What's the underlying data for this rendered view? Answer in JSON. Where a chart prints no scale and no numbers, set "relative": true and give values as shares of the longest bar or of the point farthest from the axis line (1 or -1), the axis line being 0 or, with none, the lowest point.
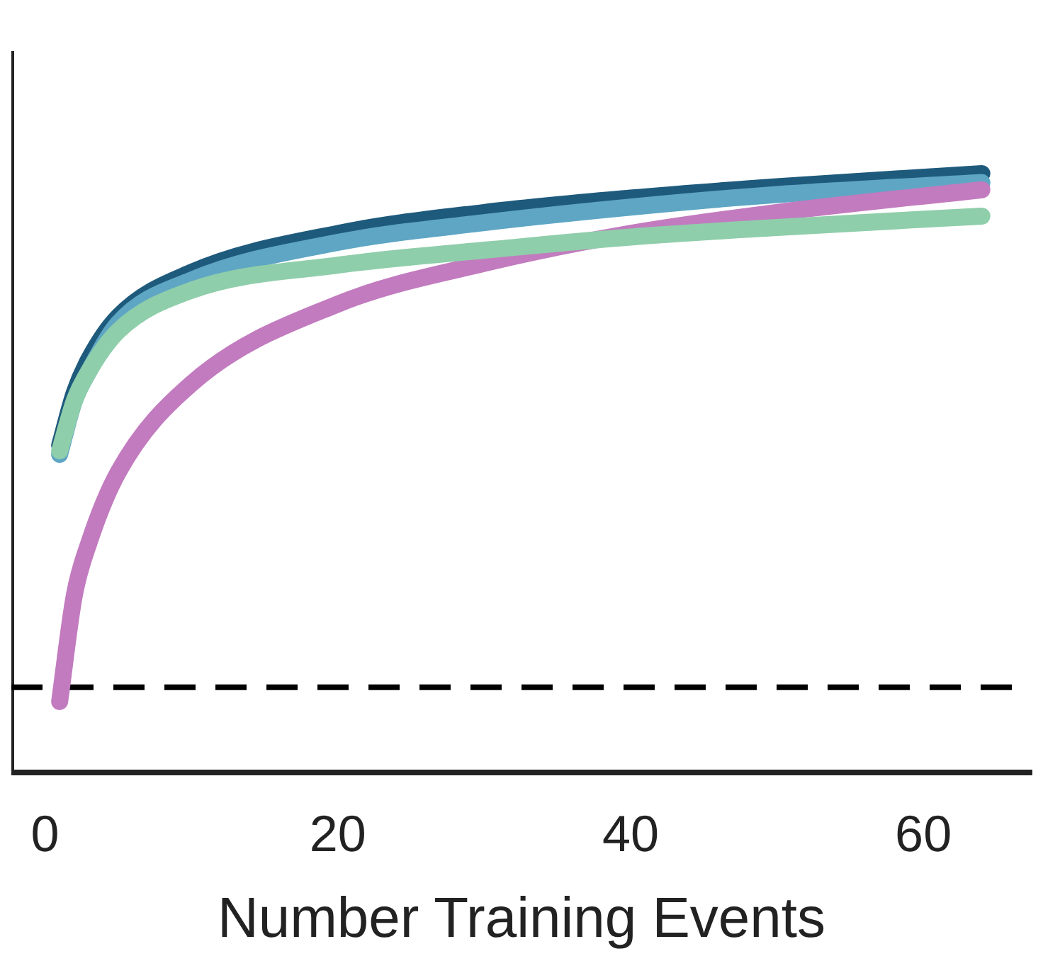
{
  "chart_data": {
    "type": "line",
    "relative": true,
    "xlabel": "Number Training Events",
    "xlim": [
      -2.3,
      67.4
    ],
    "xticks": [
      0,
      20,
      40,
      60
    ],
    "grid": false,
    "legend": false,
    "marker": "none",
    "line_style": "solid",
    "ref_lines": [
      {
        "axis": "y",
        "value": 0.142,
        "color": "#000000",
        "line_style": "dashed"
      }
    ],
    "series": [
      {
        "color": "#8fceaa",
        "x": [
          1,
          2,
          3,
          5,
          10,
          20,
          30,
          40,
          50,
          64
        ],
        "values": [
          0.537,
          0.62,
          0.67,
          0.737,
          0.805,
          0.847,
          0.872,
          0.894,
          0.91,
          0.929
        ]
      },
      {
        "color": "#c27bbf",
        "x": [
          1,
          2,
          3,
          5,
          10,
          20,
          30,
          40,
          50,
          64
        ],
        "values": [
          0.118,
          0.295,
          0.383,
          0.501,
          0.649,
          0.782,
          0.85,
          0.9,
          0.935,
          0.973
        ]
      },
      {
        "color": "#5ea6c4",
        "x": [
          1,
          2,
          3,
          5,
          10,
          20,
          30,
          40,
          50,
          64
        ],
        "values": [
          0.531,
          0.62,
          0.67,
          0.75,
          0.822,
          0.885,
          0.918,
          0.944,
          0.965,
          0.985
        ]
      },
      {
        "color": "#1e5a7c",
        "x": [
          1,
          2,
          3,
          5,
          10,
          20,
          30,
          40,
          50,
          64
        ],
        "values": [
          0.546,
          0.634,
          0.69,
          0.761,
          0.835,
          0.9,
          0.935,
          0.959,
          0.978,
          1.0
        ]
      }
    ]
  }
}
